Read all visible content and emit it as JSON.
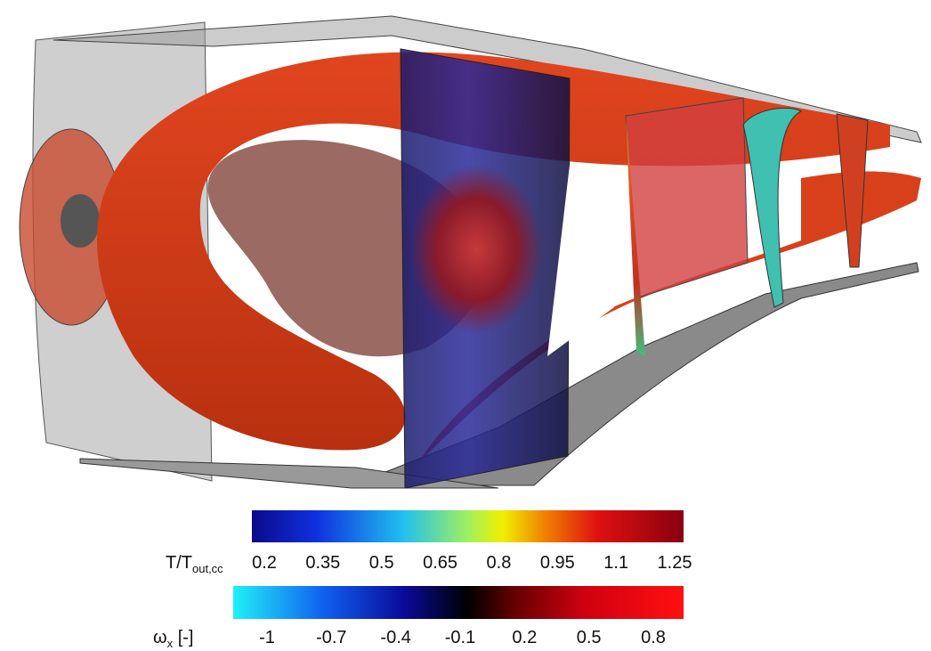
{
  "colorbars": [
    {
      "label": "T/T",
      "label_sub": "out,cc",
      "ticks": [
        0.2,
        0.35,
        0.5,
        0.65,
        0.8,
        0.95,
        1.1,
        1.25
      ]
    },
    {
      "label": "ω",
      "label_sub": "x",
      "label_suffix": "[-]",
      "ticks": [
        -1,
        -0.7,
        -0.4,
        -0.1,
        0.2,
        0.5,
        0.8
      ]
    }
  ]
}
